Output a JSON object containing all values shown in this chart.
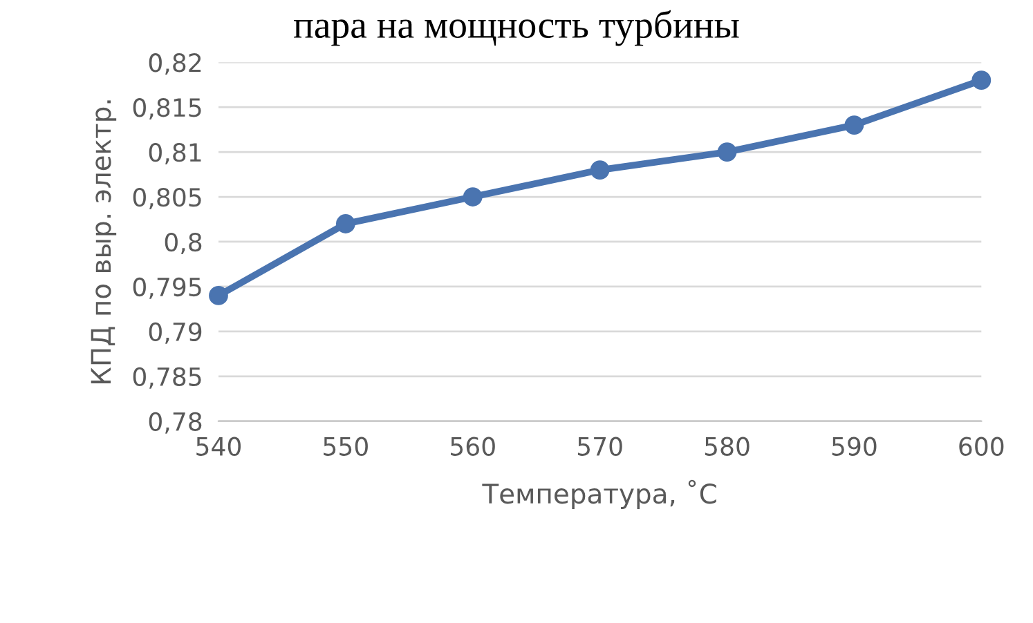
{
  "chart_data": {
    "type": "line",
    "title": "пара на мощность турбины",
    "xlabel": "Температура, ˚C",
    "ylabel": "КПД по выр. электр.",
    "x": [
      540,
      550,
      560,
      570,
      580,
      590,
      600
    ],
    "series": [
      {
        "color": "#4a74b0",
        "values": [
          0.794,
          0.802,
          0.805,
          0.808,
          0.81,
          0.813,
          0.818
        ]
      }
    ],
    "xlim": [
      540,
      600
    ],
    "xticks": [
      540,
      550,
      560,
      570,
      580,
      590,
      600
    ],
    "ylim": [
      0.78,
      0.82
    ],
    "yticks": [
      {
        "value": 0.78,
        "label": "0,78"
      },
      {
        "value": 0.785,
        "label": "0,785"
      },
      {
        "value": 0.79,
        "label": "0,79"
      },
      {
        "value": 0.795,
        "label": "0,795"
      },
      {
        "value": 0.8,
        "label": "0,8"
      },
      {
        "value": 0.805,
        "label": "0,805"
      },
      {
        "value": 0.81,
        "label": "0,81"
      },
      {
        "value": 0.815,
        "label": "0,815"
      },
      {
        "value": 0.82,
        "label": "0,82"
      }
    ],
    "grid": "y",
    "marker": "circle",
    "line_style": "solid",
    "legend": false
  }
}
